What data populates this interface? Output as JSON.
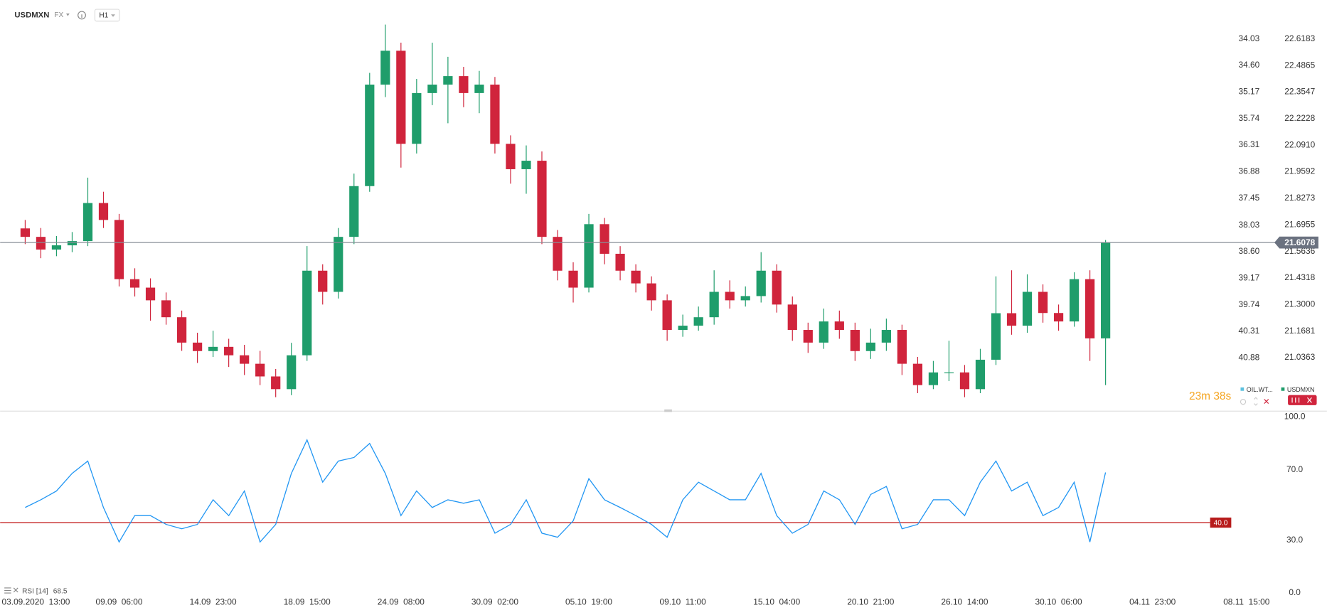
{
  "toolbar": {
    "symbol": "USDMXN",
    "market": "FX",
    "interval": "H1"
  },
  "chart_data": [
    {
      "type": "candlestick",
      "series": [
        {
          "name": "USDMXN",
          "open": [
            21.678,
            21.636,
            21.573,
            21.594,
            21.615,
            21.804,
            21.72,
            21.426,
            21.384,
            21.321,
            21.237,
            21.111,
            21.069,
            21.09,
            21.048,
            21.006,
            20.943,
            20.88,
            21.048,
            21.468,
            21.363,
            21.636,
            21.888,
            22.392,
            22.56,
            22.098,
            22.35,
            22.392,
            22.434,
            22.35,
            22.392,
            22.098,
            21.972,
            22.014,
            21.636,
            21.468,
            21.384,
            21.699,
            21.552,
            21.468,
            21.405,
            21.321,
            21.174,
            21.195,
            21.237,
            21.363,
            21.321,
            21.342,
            21.468,
            21.3,
            21.174,
            21.111,
            21.216,
            21.174,
            21.069,
            21.111,
            21.174,
            21.006,
            20.9,
            20.963,
            20.963,
            20.88,
            21.026,
            21.257,
            21.195,
            21.363,
            21.258,
            21.216,
            21.426,
            21.132
          ],
          "high": [
            21.72,
            21.68,
            21.64,
            21.66,
            21.93,
            21.86,
            21.75,
            21.48,
            21.43,
            21.36,
            21.27,
            21.16,
            21.17,
            21.13,
            21.1,
            21.07,
            20.98,
            21.11,
            21.59,
            21.5,
            21.68,
            21.95,
            22.45,
            22.69,
            22.6,
            22.42,
            22.6,
            22.53,
            22.48,
            22.46,
            22.43,
            22.14,
            22.09,
            22.06,
            21.67,
            21.51,
            21.75,
            21.73,
            21.59,
            21.5,
            21.44,
            21.35,
            21.25,
            21.29,
            21.47,
            21.42,
            21.39,
            21.56,
            21.5,
            21.34,
            21.21,
            21.28,
            21.27,
            21.21,
            21.18,
            21.23,
            21.2,
            21.04,
            21.02,
            21.12,
            21.0,
            21.08,
            21.44,
            21.47,
            21.45,
            21.4,
            21.3,
            21.46,
            21.47,
            21.62
          ],
          "low": [
            21.6,
            21.53,
            21.54,
            21.56,
            21.59,
            21.68,
            21.39,
            21.34,
            21.22,
            21.2,
            21.07,
            21.01,
            21.04,
            20.99,
            20.95,
            20.9,
            20.84,
            20.85,
            21.02,
            21.3,
            21.33,
            21.6,
            21.86,
            22.33,
            21.98,
            22.05,
            22.29,
            22.2,
            22.28,
            22.25,
            22.05,
            21.9,
            21.85,
            21.6,
            21.42,
            21.31,
            21.36,
            21.5,
            21.42,
            21.36,
            21.27,
            21.12,
            21.14,
            21.17,
            21.2,
            21.28,
            21.29,
            21.31,
            21.26,
            21.12,
            21.06,
            21.08,
            21.13,
            21.02,
            21.03,
            21.07,
            20.95,
            20.86,
            20.88,
            20.92,
            20.84,
            20.86,
            21.0,
            21.15,
            21.16,
            21.21,
            21.17,
            21.19,
            21.02,
            20.9
          ],
          "close": [
            21.636,
            21.573,
            21.594,
            21.615,
            21.804,
            21.72,
            21.426,
            21.384,
            21.321,
            21.237,
            21.111,
            21.069,
            21.09,
            21.048,
            21.006,
            20.943,
            20.88,
            21.048,
            21.468,
            21.363,
            21.636,
            21.888,
            22.392,
            22.56,
            22.098,
            22.35,
            22.392,
            22.434,
            22.35,
            22.392,
            22.098,
            21.972,
            22.014,
            21.636,
            21.468,
            21.384,
            21.699,
            21.552,
            21.468,
            21.405,
            21.321,
            21.174,
            21.195,
            21.237,
            21.363,
            21.321,
            21.342,
            21.468,
            21.3,
            21.174,
            21.111,
            21.216,
            21.174,
            21.069,
            21.111,
            21.174,
            21.006,
            20.9,
            20.963,
            20.963,
            20.88,
            21.026,
            21.257,
            21.195,
            21.363,
            21.258,
            21.216,
            21.426,
            21.132,
            21.6078
          ]
        }
      ],
      "up_color": "#1f9d6b",
      "down_color": "#d0243c",
      "xlim": [
        -1.6,
        80
      ],
      "ylim": [
        20.775,
        22.812
      ],
      "yticks": [
        22.6183,
        22.4865,
        22.3547,
        22.2228,
        {
          "value": 22.091,
          "label": "22.0910"
        },
        21.9592,
        21.8273,
        21.6955,
        21.5636,
        21.4318,
        {
          "value": 21.3,
          "label": "21.3000"
        },
        21.1681,
        21.0363
      ],
      "y2lim": [
        33.195,
        42.005
      ],
      "y2_inverted": true,
      "y2ticks": [
        34.03,
        {
          "value": 34.6,
          "label": "34.60"
        },
        35.17,
        35.74,
        36.31,
        36.88,
        37.45,
        38.03,
        {
          "value": 38.6,
          "label": "38.60"
        },
        39.17,
        39.74,
        40.31,
        40.88
      ],
      "last_price_line": true,
      "countdown": "23m 38s",
      "legend": [
        {
          "name": "OIL.WT...",
          "color": "#5bc0de"
        },
        {
          "name": "USDMXN",
          "color": "#1f9d6b"
        }
      ],
      "legend_position": "bottom-right"
    },
    {
      "type": "line",
      "title": "RSI [14]",
      "color": "#2196f3",
      "values": [
        48.6,
        53,
        58,
        68,
        75,
        48.6,
        29,
        44,
        44,
        39,
        36.5,
        39,
        53,
        44,
        58,
        29,
        39,
        68,
        87,
        63,
        75,
        77,
        85,
        68,
        44,
        58,
        48.6,
        53,
        51,
        53,
        34,
        39,
        53,
        34,
        31.7,
        41,
        65,
        53,
        48.6,
        44,
        39,
        31.7,
        53,
        63,
        58,
        53,
        53,
        68,
        44,
        34,
        39,
        58,
        53,
        39,
        56,
        60.6,
        36.5,
        39,
        53,
        53,
        44,
        63,
        75,
        58,
        63,
        44,
        48.6,
        63,
        29,
        68.5
      ],
      "xlim": [
        -1.6,
        80
      ],
      "xticks": [
        {
          "value": 0,
          "label": "03.09.2020  13:00"
        },
        {
          "value": 6,
          "label": "09.09  06:00"
        },
        {
          "value": 12,
          "label": "14.09  23:00"
        },
        {
          "value": 18,
          "label": "18.09  15:00"
        },
        {
          "value": 24,
          "label": "24.09  08:00"
        },
        {
          "value": 30,
          "label": "30.09  02:00"
        },
        {
          "value": 36,
          "label": "05.10  19:00"
        },
        {
          "value": 42,
          "label": "09.10  11:00"
        },
        {
          "value": 48,
          "label": "15.10  04:00"
        },
        {
          "value": 54,
          "label": "20.10  21:00"
        },
        {
          "value": 60,
          "label": "26.10  14:00"
        },
        {
          "value": 66,
          "label": "30.10  06:00"
        },
        {
          "value": 72,
          "label": "04.11  23:00"
        },
        {
          "value": 78,
          "label": "08.11  15:00"
        }
      ],
      "ylim": [
        0,
        100
      ],
      "yticks": [
        {
          "value": 100,
          "label": "100.0"
        },
        {
          "value": 70,
          "label": "70.0"
        },
        {
          "value": 30,
          "label": "30.0"
        },
        {
          "value": 0,
          "label": "0.0"
        }
      ],
      "level": {
        "value": 40,
        "label": "40.0"
      },
      "level_color": "#c62828"
    }
  ]
}
